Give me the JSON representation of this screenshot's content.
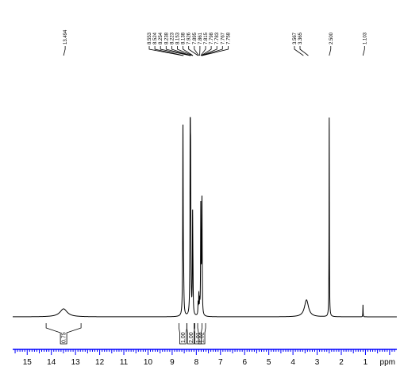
{
  "chart_data": {
    "type": "line",
    "xlabel": "ppm",
    "xlim": [
      15.6,
      -0.3
    ],
    "x_ticks": [
      "15",
      "14",
      "13",
      "12",
      "11",
      "10",
      "9",
      "8",
      "7",
      "6",
      "5",
      "4",
      "3",
      "2",
      "1"
    ],
    "peak_labels": {
      "group_a": [
        "13.494"
      ],
      "group_b": [
        "8.553",
        "8.524",
        "8.254",
        "8.238",
        "8.223",
        "8.153",
        "8.138",
        "7.926",
        "7.895",
        "7.861",
        "7.815",
        "7.798",
        "7.783",
        "7.767",
        "7.758"
      ],
      "group_c": [
        "3.567",
        "3.365"
      ],
      "group_d": [
        "2.500"
      ],
      "group_e": [
        "1.103"
      ]
    },
    "integrals": [
      "0.75",
      "1.00",
      "2.00",
      "1.01",
      "1.02"
    ],
    "series": [
      {
        "peaks": [
          {
            "ppm": 13.494,
            "height": 0.04,
            "width": 0.18
          },
          {
            "ppm": 8.553,
            "height": 0.95,
            "width": 0.012
          },
          {
            "ppm": 8.524,
            "height": 0.12,
            "width": 0.012
          },
          {
            "ppm": 8.254,
            "height": 0.95,
            "width": 0.01
          },
          {
            "ppm": 8.238,
            "height": 0.55,
            "width": 0.01
          },
          {
            "ppm": 8.223,
            "height": 0.2,
            "width": 0.01
          },
          {
            "ppm": 8.153,
            "height": 0.48,
            "width": 0.01
          },
          {
            "ppm": 8.138,
            "height": 0.12,
            "width": 0.01
          },
          {
            "ppm": 7.926,
            "height": 0.06,
            "width": 0.01
          },
          {
            "ppm": 7.895,
            "height": 0.1,
            "width": 0.01
          },
          {
            "ppm": 7.861,
            "height": 0.06,
            "width": 0.01
          },
          {
            "ppm": 7.815,
            "height": 0.53,
            "width": 0.01
          },
          {
            "ppm": 7.798,
            "height": 0.06,
            "width": 0.01
          },
          {
            "ppm": 7.783,
            "height": 0.1,
            "width": 0.01
          },
          {
            "ppm": 7.767,
            "height": 0.52,
            "width": 0.01
          },
          {
            "ppm": 7.758,
            "height": 0.06,
            "width": 0.01
          },
          {
            "ppm": 3.44,
            "height": 0.085,
            "width": 0.1
          },
          {
            "ppm": 2.5,
            "height": 1.0,
            "width": 0.008
          },
          {
            "ppm": 1.103,
            "height": 0.06,
            "width": 0.006
          }
        ]
      }
    ]
  },
  "colors": {
    "spectrum": "#000000",
    "axis": "#0000ff",
    "text": "#000000"
  }
}
